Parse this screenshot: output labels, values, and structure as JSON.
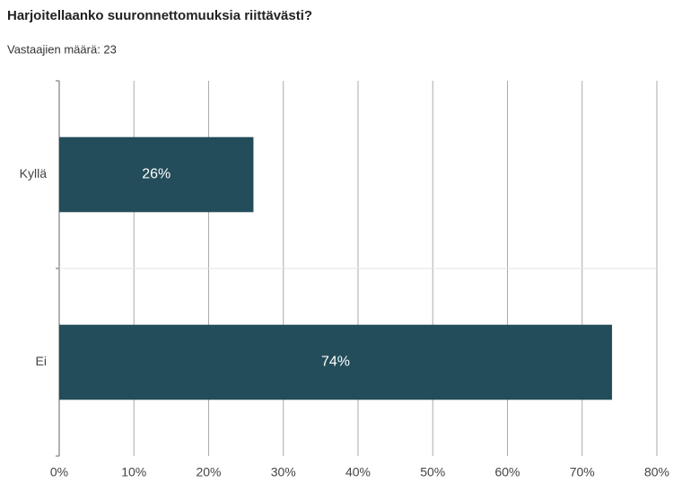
{
  "chart_data": {
    "type": "bar",
    "orientation": "horizontal",
    "title": "Harjoitellaanko suuronnettomuuksia riittävästi?",
    "subtitle": "Vastaajien määrä: 23",
    "categories": [
      "Kyllä",
      "Ei"
    ],
    "values": [
      26,
      74
    ],
    "value_labels": [
      "26%",
      "74%"
    ],
    "color": "#234d5a",
    "xlim": [
      0,
      80
    ],
    "xticks": [
      {
        "value": 0,
        "label": "0%"
      },
      {
        "value": 10,
        "label": "10%"
      },
      {
        "value": 20,
        "label": "20%"
      },
      {
        "value": 30,
        "label": "30%"
      },
      {
        "value": 40,
        "label": "40%"
      },
      {
        "value": 50,
        "label": "50%"
      },
      {
        "value": 60,
        "label": "60%"
      },
      {
        "value": 70,
        "label": "70%"
      },
      {
        "value": 80,
        "label": "80%"
      }
    ],
    "grid": true
  }
}
